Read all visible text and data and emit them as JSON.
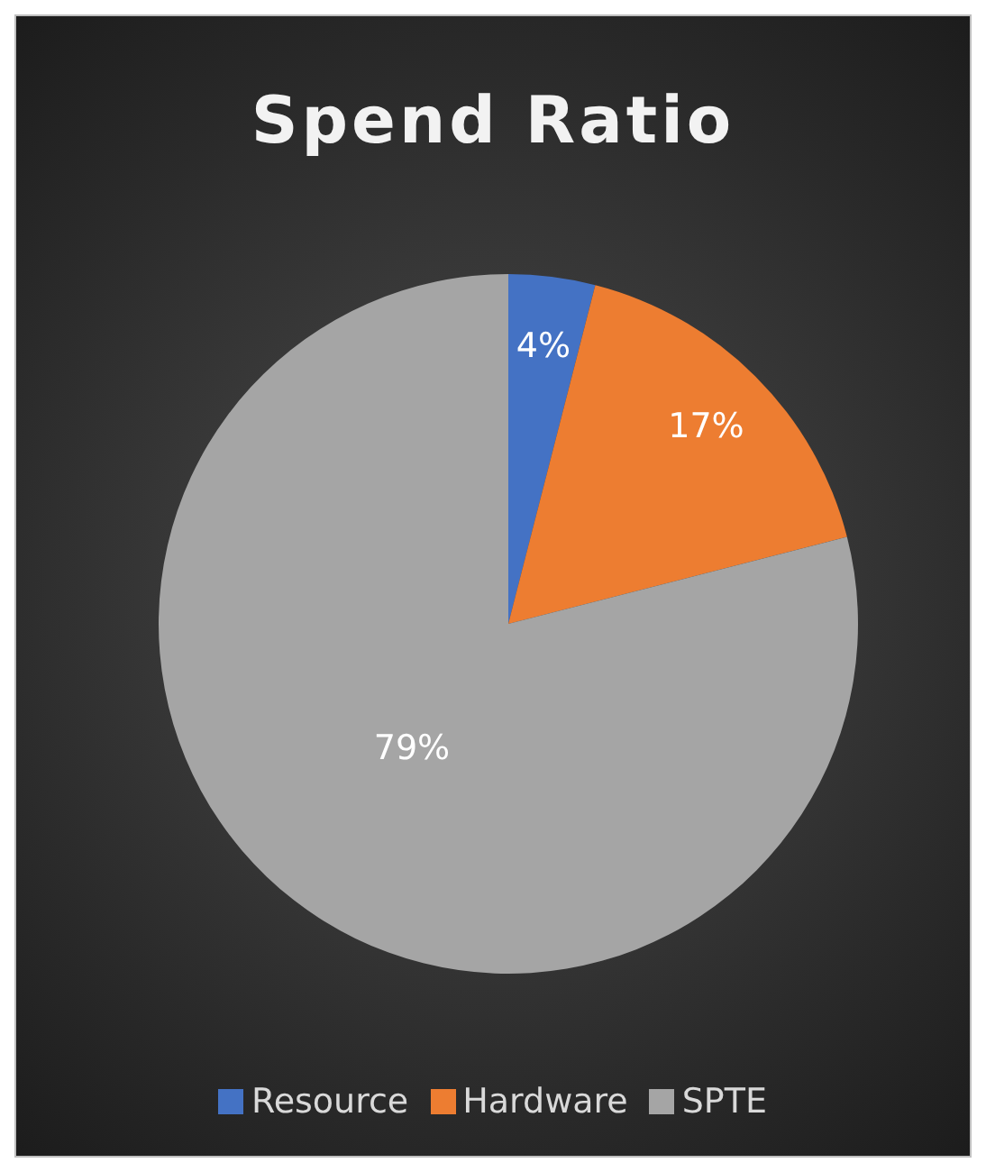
{
  "chart_data": {
    "type": "pie",
    "title": "Spend Ratio",
    "categories": [
      "Resource",
      "Hardware",
      "SPTE"
    ],
    "values": [
      4,
      17,
      79
    ],
    "colors": [
      "#4472c4",
      "#ed7d31",
      "#a5a5a5"
    ],
    "value_labels": [
      "4%",
      "17%",
      "79%"
    ],
    "legend": "bottom"
  }
}
